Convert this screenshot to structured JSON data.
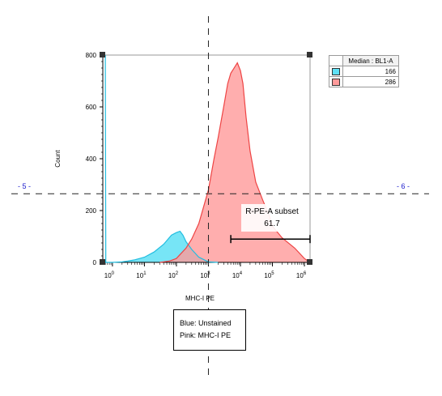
{
  "chart_data": {
    "type": "area",
    "xlabel": "MHC-I PE",
    "ylabel": "Count",
    "xscale": "log",
    "xlim": [
      0.5,
      1500000
    ],
    "ylim": [
      0,
      800
    ],
    "x_ticks": [
      {
        "base": "10",
        "exp": "0",
        "value": 1
      },
      {
        "base": "10",
        "exp": "1",
        "value": 10
      },
      {
        "base": "10",
        "exp": "2",
        "value": 100
      },
      {
        "base": "10",
        "exp": "3",
        "value": 1000
      },
      {
        "base": "10",
        "exp": "4",
        "value": 10000
      },
      {
        "base": "10",
        "exp": "5",
        "value": 100000
      },
      {
        "base": "10",
        "exp": "6",
        "value": 1000000
      }
    ],
    "y_ticks": [
      {
        "label": "0",
        "value": 0
      },
      {
        "label": "200",
        "value": 200
      },
      {
        "label": "400",
        "value": 400
      },
      {
        "label": "600",
        "value": 600
      },
      {
        "label": "800",
        "value": 800
      }
    ],
    "series": [
      {
        "name": "Unstained",
        "color": "#5fe0f5",
        "line_color": "#22bde0",
        "points": [
          [
            0.6,
            800
          ],
          [
            0.62,
            0
          ],
          [
            1,
            0
          ],
          [
            2,
            2
          ],
          [
            3,
            5
          ],
          [
            5,
            10
          ],
          [
            10,
            20
          ],
          [
            20,
            40
          ],
          [
            40,
            70
          ],
          [
            70,
            105
          ],
          [
            100,
            115
          ],
          [
            130,
            120
          ],
          [
            160,
            105
          ],
          [
            200,
            80
          ],
          [
            300,
            50
          ],
          [
            500,
            20
          ],
          [
            1000,
            2
          ],
          [
            2000,
            0
          ]
        ]
      },
      {
        "name": "MHC-I PE",
        "color": "#ff9a9a",
        "line_color": "#ee4444",
        "points": [
          [
            30,
            0
          ],
          [
            60,
            5
          ],
          [
            100,
            15
          ],
          [
            200,
            55
          ],
          [
            300,
            90
          ],
          [
            500,
            150
          ],
          [
            1000,
            280
          ],
          [
            1500,
            400
          ],
          [
            2000,
            480
          ],
          [
            3000,
            600
          ],
          [
            4000,
            690
          ],
          [
            5000,
            730
          ],
          [
            6000,
            745
          ],
          [
            8000,
            770
          ],
          [
            10000,
            740
          ],
          [
            12000,
            690
          ],
          [
            15000,
            560
          ],
          [
            20000,
            430
          ],
          [
            30000,
            310
          ],
          [
            50000,
            240
          ],
          [
            80000,
            180
          ],
          [
            100000,
            140
          ],
          [
            200000,
            95
          ],
          [
            500000,
            55
          ],
          [
            1000000,
            15
          ],
          [
            1500000,
            0
          ]
        ]
      }
    ],
    "gate": {
      "name": "R-PE-A subset",
      "value": "61.7",
      "x_from": 5000,
      "x_to": 1500000,
      "y": 90
    },
    "threshold_x": 1000,
    "threshold_y": 265
  },
  "quadrants": {
    "left": "- 5 -",
    "right": "- 6 -"
  },
  "stats_table": {
    "header": "Median : BL1-A",
    "rows": [
      {
        "value": "166",
        "color": "#5fe0f5"
      },
      {
        "value": "286",
        "color": "#ff9a9a"
      }
    ]
  },
  "note": {
    "line1": "Blue: Unstained",
    "line2": "Pink: MHC-I PE"
  }
}
